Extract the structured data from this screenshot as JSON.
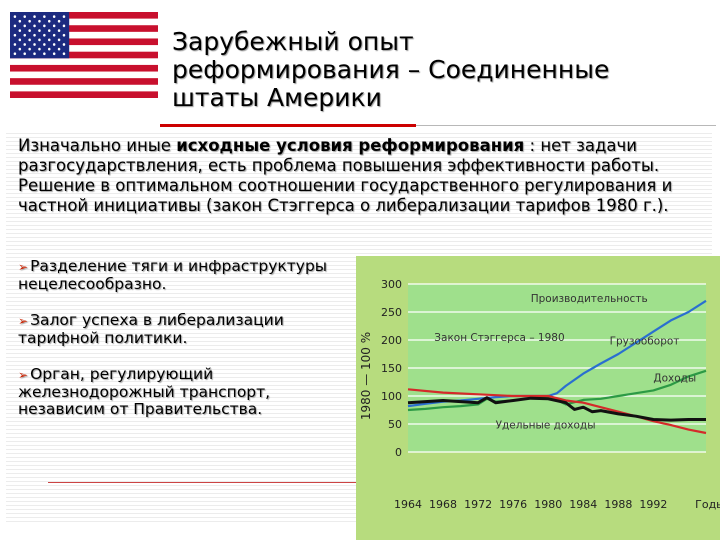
{
  "header": {
    "title_lines": [
      "Зарубежный опыт",
      "реформирования – Соединенные",
      "штаты Америки"
    ]
  },
  "intro": {
    "text_before": "Изначально иные ",
    "text_bold": "исходные условия реформирования",
    "text_after": " : нет задачи разгосударствления, есть проблема повышения эффективности работы. Решение в оптимальном соотношении государственного регулирования и частной инициативы (закон Стэггерса о либерализации тарифов 1980 г.)."
  },
  "bullets": [
    "Разделение тяги и инфраструктуры нецелесообразно.",
    "Залог успеха в либерализации тарифной политики.",
    "Орган, регулирующий железнодорожный транспорт, независим от Правительства."
  ],
  "colors": {
    "chart_bg": "#b7dc7e",
    "plot_bg": "#9fe08c",
    "productivity": "#2a6fd0",
    "freight": "#2c9a45",
    "revenue": "#d42a2a",
    "unit_revenue": "#111111",
    "title_red": "#cc0000"
  },
  "chart_data": {
    "type": "line",
    "ylabel": "1980 — 100 %",
    "ylim": [
      0,
      300
    ],
    "yticks": [
      "300",
      "250",
      "200",
      "150",
      "100",
      "50",
      "0"
    ],
    "xlim": [
      1964,
      1998
    ],
    "xticks": [
      "1964",
      "1968",
      "1972",
      "1976",
      "1980",
      "1984",
      "1988",
      "1992",
      "Годы"
    ],
    "annotation": "Закон Стэггерса – 1980",
    "series": [
      {
        "name": "Производительность",
        "color": "#2a6fd0",
        "x": [
          1964,
          1966,
          1968,
          1970,
          1972,
          1974,
          1976,
          1978,
          1980,
          1981,
          1982,
          1984,
          1986,
          1988,
          1990,
          1992,
          1994,
          1996,
          1998
        ],
        "y": [
          82,
          86,
          90,
          92,
          95,
          98,
          100,
          100,
          100,
          105,
          118,
          140,
          158,
          175,
          195,
          215,
          235,
          250,
          270
        ]
      },
      {
        "name": "Грузооборот",
        "color": "#2c9a45",
        "x": [
          1964,
          1966,
          1968,
          1970,
          1972,
          1973,
          1974,
          1976,
          1978,
          1980,
          1982,
          1984,
          1986,
          1988,
          1990,
          1992,
          1994,
          1996,
          1998
        ],
        "y": [
          75,
          77,
          80,
          82,
          85,
          95,
          90,
          92,
          96,
          100,
          85,
          93,
          95,
          100,
          105,
          110,
          120,
          135,
          145
        ]
      },
      {
        "name": "Доходы",
        "color": "#d42a2a",
        "x": [
          1964,
          1968,
          1972,
          1976,
          1980,
          1982,
          1984,
          1986,
          1988,
          1990,
          1992,
          1994,
          1996,
          1998
        ],
        "y": [
          112,
          106,
          103,
          100,
          100,
          92,
          88,
          80,
          72,
          64,
          55,
          48,
          40,
          34
        ]
      },
      {
        "name": "Удельные доходы",
        "color": "#111111",
        "x": [
          1964,
          1966,
          1968,
          1970,
          1972,
          1973,
          1974,
          1976,
          1978,
          1980,
          1982,
          1983,
          1984,
          1985,
          1986,
          1988,
          1990,
          1992,
          1994,
          1996,
          1998
        ],
        "y": [
          88,
          90,
          92,
          90,
          88,
          97,
          88,
          92,
          96,
          95,
          88,
          76,
          80,
          72,
          74,
          68,
          64,
          58,
          57,
          58,
          58
        ]
      }
    ]
  }
}
